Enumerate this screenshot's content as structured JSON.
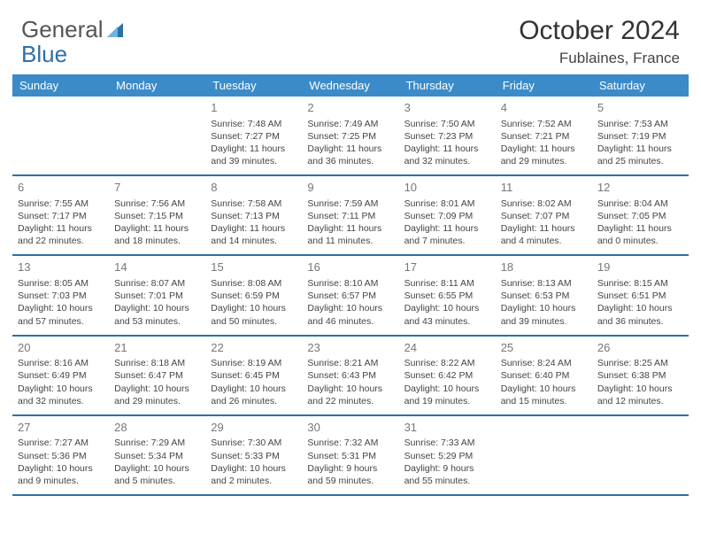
{
  "brand": {
    "part1": "General",
    "part2": "Blue"
  },
  "title": "October 2024",
  "location": "Fublaines, France",
  "colors": {
    "header_bg": "#3b8bc9",
    "header_text": "#ffffff",
    "divider": "#2f6fa8",
    "day_num": "#777777",
    "body_text": "#444444",
    "logo_gray": "#555555",
    "logo_blue": "#2f6fa8",
    "background": "#ffffff"
  },
  "typography": {
    "title_fontsize": 30,
    "location_fontsize": 17,
    "logo_fontsize": 26,
    "header_fontsize": 13,
    "daynum_fontsize": 13,
    "body_fontsize": 10.5,
    "font_family": "Arial"
  },
  "dayNames": [
    "Sunday",
    "Monday",
    "Tuesday",
    "Wednesday",
    "Thursday",
    "Friday",
    "Saturday"
  ],
  "weeks": [
    [
      null,
      null,
      {
        "n": "1",
        "sr": "7:48 AM",
        "ss": "7:27 PM",
        "dl": "11 hours and 39 minutes."
      },
      {
        "n": "2",
        "sr": "7:49 AM",
        "ss": "7:25 PM",
        "dl": "11 hours and 36 minutes."
      },
      {
        "n": "3",
        "sr": "7:50 AM",
        "ss": "7:23 PM",
        "dl": "11 hours and 32 minutes."
      },
      {
        "n": "4",
        "sr": "7:52 AM",
        "ss": "7:21 PM",
        "dl": "11 hours and 29 minutes."
      },
      {
        "n": "5",
        "sr": "7:53 AM",
        "ss": "7:19 PM",
        "dl": "11 hours and 25 minutes."
      }
    ],
    [
      {
        "n": "6",
        "sr": "7:55 AM",
        "ss": "7:17 PM",
        "dl": "11 hours and 22 minutes."
      },
      {
        "n": "7",
        "sr": "7:56 AM",
        "ss": "7:15 PM",
        "dl": "11 hours and 18 minutes."
      },
      {
        "n": "8",
        "sr": "7:58 AM",
        "ss": "7:13 PM",
        "dl": "11 hours and 14 minutes."
      },
      {
        "n": "9",
        "sr": "7:59 AM",
        "ss": "7:11 PM",
        "dl": "11 hours and 11 minutes."
      },
      {
        "n": "10",
        "sr": "8:01 AM",
        "ss": "7:09 PM",
        "dl": "11 hours and 7 minutes."
      },
      {
        "n": "11",
        "sr": "8:02 AM",
        "ss": "7:07 PM",
        "dl": "11 hours and 4 minutes."
      },
      {
        "n": "12",
        "sr": "8:04 AM",
        "ss": "7:05 PM",
        "dl": "11 hours and 0 minutes."
      }
    ],
    [
      {
        "n": "13",
        "sr": "8:05 AM",
        "ss": "7:03 PM",
        "dl": "10 hours and 57 minutes."
      },
      {
        "n": "14",
        "sr": "8:07 AM",
        "ss": "7:01 PM",
        "dl": "10 hours and 53 minutes."
      },
      {
        "n": "15",
        "sr": "8:08 AM",
        "ss": "6:59 PM",
        "dl": "10 hours and 50 minutes."
      },
      {
        "n": "16",
        "sr": "8:10 AM",
        "ss": "6:57 PM",
        "dl": "10 hours and 46 minutes."
      },
      {
        "n": "17",
        "sr": "8:11 AM",
        "ss": "6:55 PM",
        "dl": "10 hours and 43 minutes."
      },
      {
        "n": "18",
        "sr": "8:13 AM",
        "ss": "6:53 PM",
        "dl": "10 hours and 39 minutes."
      },
      {
        "n": "19",
        "sr": "8:15 AM",
        "ss": "6:51 PM",
        "dl": "10 hours and 36 minutes."
      }
    ],
    [
      {
        "n": "20",
        "sr": "8:16 AM",
        "ss": "6:49 PM",
        "dl": "10 hours and 32 minutes."
      },
      {
        "n": "21",
        "sr": "8:18 AM",
        "ss": "6:47 PM",
        "dl": "10 hours and 29 minutes."
      },
      {
        "n": "22",
        "sr": "8:19 AM",
        "ss": "6:45 PM",
        "dl": "10 hours and 26 minutes."
      },
      {
        "n": "23",
        "sr": "8:21 AM",
        "ss": "6:43 PM",
        "dl": "10 hours and 22 minutes."
      },
      {
        "n": "24",
        "sr": "8:22 AM",
        "ss": "6:42 PM",
        "dl": "10 hours and 19 minutes."
      },
      {
        "n": "25",
        "sr": "8:24 AM",
        "ss": "6:40 PM",
        "dl": "10 hours and 15 minutes."
      },
      {
        "n": "26",
        "sr": "8:25 AM",
        "ss": "6:38 PM",
        "dl": "10 hours and 12 minutes."
      }
    ],
    [
      {
        "n": "27",
        "sr": "7:27 AM",
        "ss": "5:36 PM",
        "dl": "10 hours and 9 minutes."
      },
      {
        "n": "28",
        "sr": "7:29 AM",
        "ss": "5:34 PM",
        "dl": "10 hours and 5 minutes."
      },
      {
        "n": "29",
        "sr": "7:30 AM",
        "ss": "5:33 PM",
        "dl": "10 hours and 2 minutes."
      },
      {
        "n": "30",
        "sr": "7:32 AM",
        "ss": "5:31 PM",
        "dl": "9 hours and 59 minutes."
      },
      {
        "n": "31",
        "sr": "7:33 AM",
        "ss": "5:29 PM",
        "dl": "9 hours and 55 minutes."
      },
      null,
      null
    ]
  ],
  "labels": {
    "sunrise": "Sunrise:",
    "sunset": "Sunset:",
    "daylight": "Daylight:"
  }
}
